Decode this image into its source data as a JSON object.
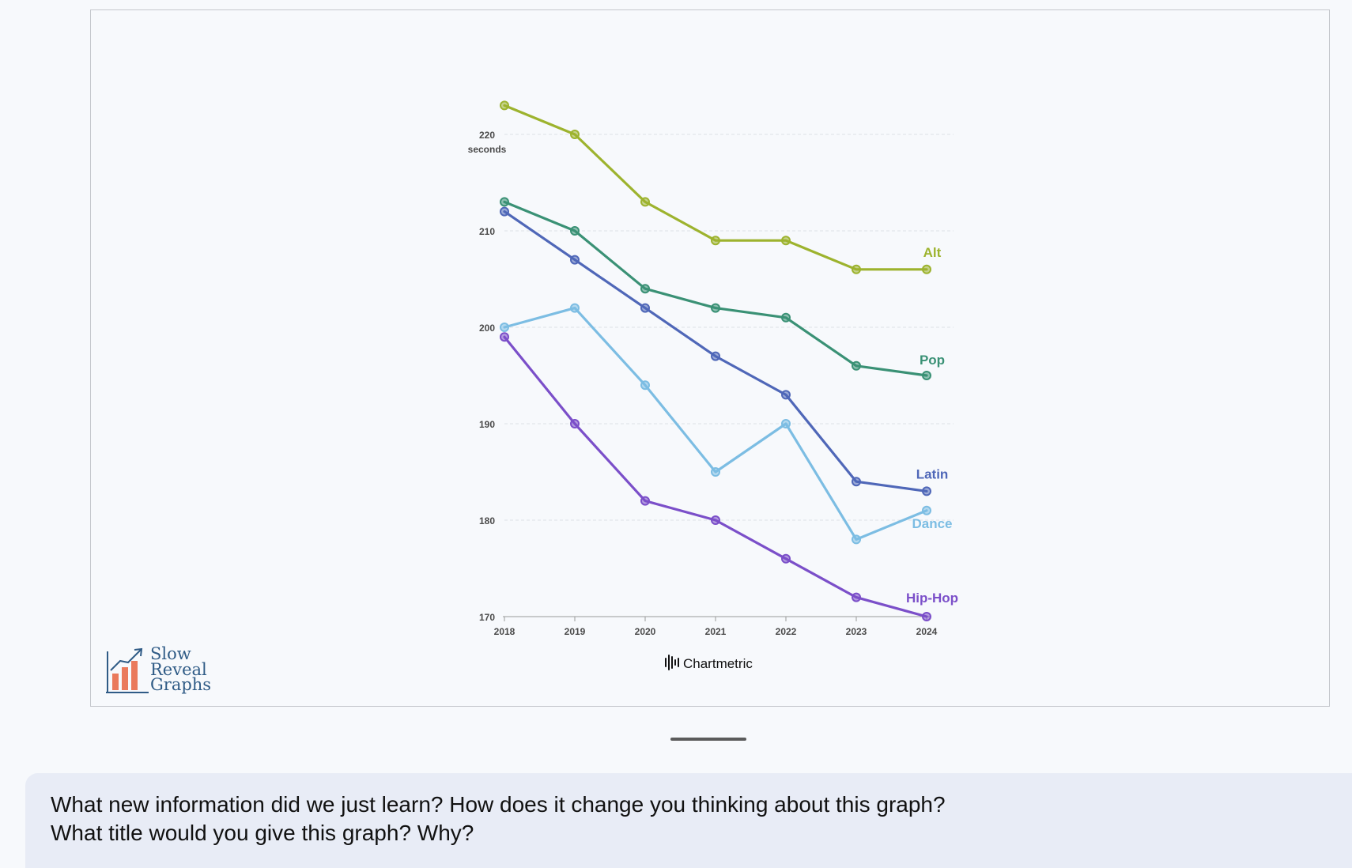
{
  "chart_data": {
    "type": "line",
    "title": "",
    "xlabel": "",
    "ylabel": "seconds",
    "x": [
      "2018",
      "2019",
      "2020",
      "2021",
      "2022",
      "2023",
      "2024"
    ],
    "ylim": [
      170,
      220
    ],
    "yticks": [
      "220",
      "210",
      "200",
      "190",
      "180",
      "170"
    ],
    "grid": true,
    "legend": "end-of-line labels",
    "series": [
      {
        "name": "Alt",
        "color": "#9db32e",
        "values": [
          223,
          220,
          213,
          209,
          209,
          206,
          206
        ]
      },
      {
        "name": "Pop",
        "color": "#3a9175",
        "values": [
          213,
          210,
          204,
          202,
          201,
          196,
          195
        ]
      },
      {
        "name": "Latin",
        "color": "#4f67b8",
        "values": [
          212,
          207,
          202,
          197,
          193,
          184,
          183
        ]
      },
      {
        "name": "Dance",
        "color": "#7cbde3",
        "values": [
          200,
          202,
          194,
          185,
          190,
          178,
          181
        ]
      },
      {
        "name": "Hip-Hop",
        "color": "#7b4fc9",
        "values": [
          199,
          190,
          182,
          180,
          176,
          172,
          170
        ]
      }
    ],
    "source": "Chartmetric"
  },
  "logo": {
    "lines": [
      "Slow",
      "Reveal",
      "Graphs"
    ],
    "icon": "bar-chart-arrow-icon"
  },
  "prompt": {
    "line1": "What new information did we just learn? How does it change you thinking about this graph?",
    "line2": "What title would you give this graph? Why?"
  }
}
